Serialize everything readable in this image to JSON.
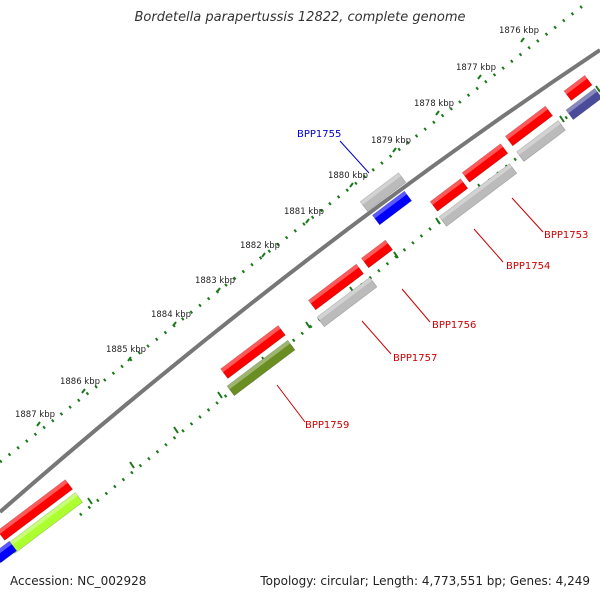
{
  "title": "Bordetella parapertussis 12822, complete genome",
  "footer": {
    "accession": "Accession: NC_002928",
    "summary": "Topology: circular; Length: 4,773,551 bp; Genes: 4,249"
  },
  "kbp_labels": [
    "1876 kbp",
    "1877 kbp",
    "1878 kbp",
    "1879 kbp",
    "1880 kbp",
    "1881 kbp",
    "1882 kbp",
    "1883 kbp",
    "1884 kbp",
    "1885 kbp",
    "1886 kbp",
    "1887 kbp"
  ],
  "gene_labels": [
    {
      "name": "BPP1755",
      "color": "#0000cc"
    },
    {
      "name": "BPP1753",
      "color": "#cc0000"
    },
    {
      "name": "BPP1754",
      "color": "#cc0000"
    },
    {
      "name": "BPP1756",
      "color": "#cc0000"
    },
    {
      "name": "BPP1757",
      "color": "#cc0000"
    },
    {
      "name": "BPP1759",
      "color": "#cc0000"
    }
  ],
  "colors": {
    "backbone": "#777777",
    "ruler": "#1a7a1a",
    "cds_red": "#ff0000",
    "cds_grey": "#bbbbbb",
    "cds_blue": "#0000ff",
    "cds_olive": "#6b8e23",
    "cds_lime": "#adff2f",
    "cds_navy": "#4b4b9c"
  }
}
